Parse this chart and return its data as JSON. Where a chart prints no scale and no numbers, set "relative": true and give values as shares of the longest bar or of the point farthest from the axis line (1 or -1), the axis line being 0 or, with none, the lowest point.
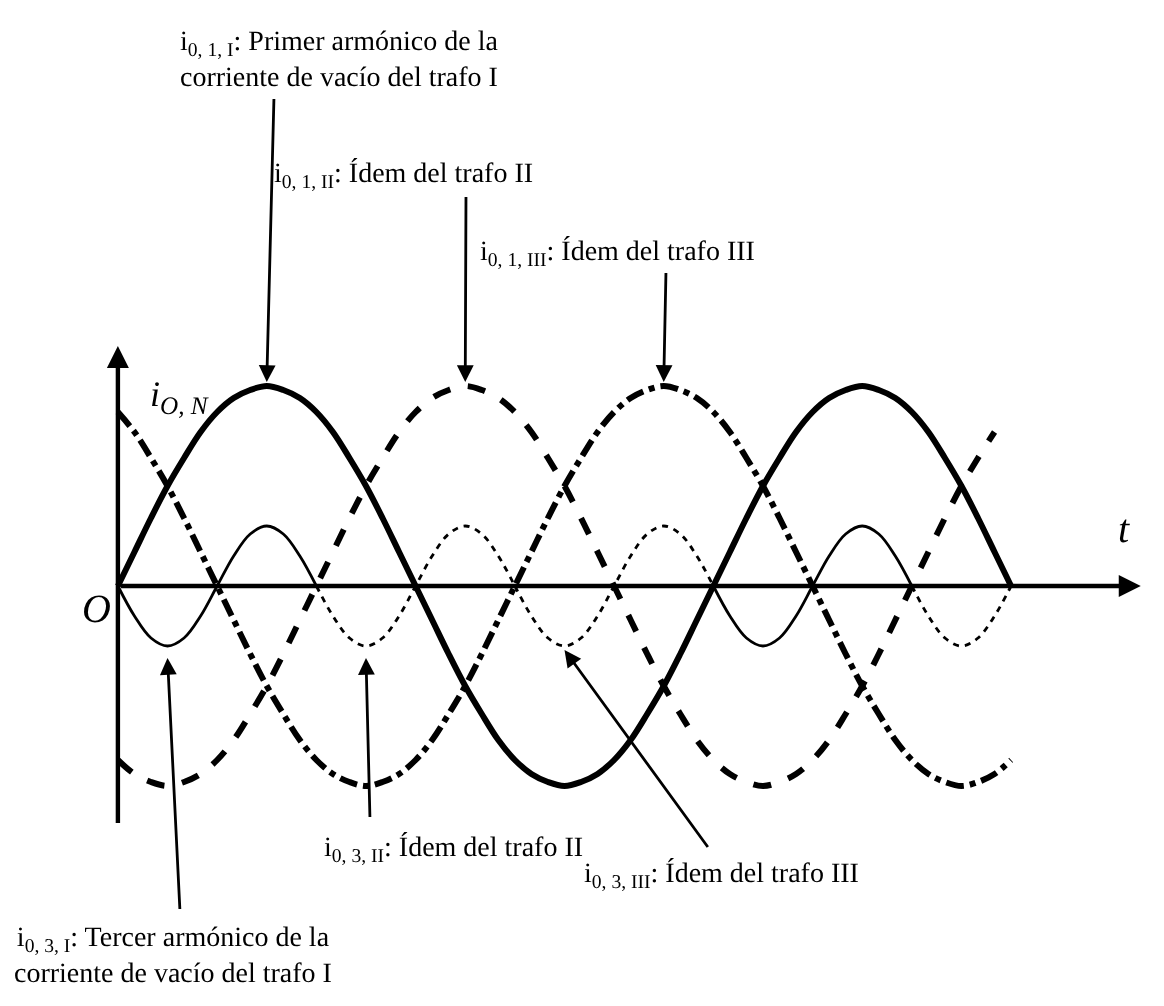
{
  "chart_data": {
    "type": "line",
    "relative": true,
    "legend": false,
    "marker": "none",
    "xlabel": "t",
    "ylabel": "i$_{O, N}$",
    "annotations": [
      "O"
    ],
    "categories": [
      null,
      null,
      null,
      null,
      null,
      null,
      null,
      null,
      null,
      null,
      null,
      null,
      null,
      null,
      null,
      null,
      null,
      null,
      null,
      null,
      null,
      null,
      null,
      null,
      null,
      null,
      null,
      null,
      null,
      null,
      null,
      null,
      null,
      null,
      null,
      null,
      null,
      null,
      null,
      null,
      null,
      null,
      null,
      null,
      null,
      null,
      null,
      null,
      null,
      null,
      null,
      null,
      null,
      null,
      null
    ],
    "series": [
      {
        "name": "i$_{0, 1, I}$: Primer armónico de la corriente de vacío del trafo I",
        "color": "#000000",
        "line_style": "solid",
        "values": [
          0,
          0.17,
          0.34,
          0.5,
          0.64,
          0.77,
          0.87,
          0.94,
          0.98,
          1,
          0.98,
          0.94,
          0.87,
          0.77,
          0.64,
          0.5,
          0.34,
          0.17,
          0,
          -0.17,
          -0.34,
          -0.5,
          -0.64,
          -0.77,
          -0.87,
          -0.94,
          -0.98,
          -1,
          -0.98,
          -0.94,
          -0.87,
          -0.77,
          -0.64,
          -0.5,
          -0.34,
          -0.17,
          0,
          0.17,
          0.34,
          0.5,
          0.64,
          0.77,
          0.87,
          0.94,
          0.98,
          1,
          0.98,
          0.94,
          0.87,
          0.77,
          0.64,
          0.5,
          0.34,
          0.17,
          0
        ]
      },
      {
        "name": "i$_{0, 1, II}$: Ídem del trafo II",
        "color": "#000000",
        "line_style": "dashed",
        "values": [
          -0.87,
          -0.94,
          -0.98,
          -1,
          -0.98,
          -0.94,
          -0.87,
          -0.77,
          -0.64,
          -0.5,
          -0.34,
          -0.17,
          0,
          0.17,
          0.34,
          0.5,
          0.64,
          0.77,
          0.87,
          0.94,
          0.98,
          1,
          0.98,
          0.94,
          0.87,
          0.77,
          0.64,
          0.5,
          0.34,
          0.17,
          0,
          -0.17,
          -0.34,
          -0.5,
          -0.64,
          -0.77,
          -0.87,
          -0.94,
          -0.98,
          -1,
          -0.98,
          -0.94,
          -0.87,
          -0.77,
          -0.64,
          -0.5,
          -0.34,
          -0.17,
          0,
          0.17,
          0.34,
          0.5,
          0.64,
          0.77,
          null
        ]
      },
      {
        "name": "i$_{0, 1, III}$: Ídem del trafo III",
        "color": "#000000",
        "line_style": "dashdot",
        "values": [
          0.87,
          0.77,
          0.64,
          0.5,
          0.34,
          0.17,
          0,
          -0.17,
          -0.34,
          -0.5,
          -0.64,
          -0.77,
          -0.87,
          -0.94,
          -0.98,
          -1,
          -0.98,
          -0.94,
          -0.87,
          -0.77,
          -0.64,
          -0.5,
          -0.34,
          -0.17,
          0,
          0.17,
          0.34,
          0.5,
          0.64,
          0.77,
          0.87,
          0.94,
          0.98,
          1,
          0.98,
          0.94,
          0.87,
          0.77,
          0.64,
          0.5,
          0.34,
          0.17,
          0,
          -0.17,
          -0.34,
          -0.5,
          -0.64,
          -0.77,
          -0.87,
          -0.94,
          -0.98,
          -1,
          -0.98,
          -0.94,
          -0.87
        ]
      },
      {
        "name": "i$_{0, 3, I}$: Tercer armónico de la corriente de vacío del trafo I",
        "color": "#000000",
        "line_style": "solid",
        "values": [
          0,
          -0.15,
          -0.26,
          -0.3,
          -0.26,
          -0.15,
          0,
          0.15,
          0.26,
          0.3,
          0.26,
          0.15,
          0,
          null,
          null,
          null,
          null,
          null,
          null,
          null,
          null,
          null,
          null,
          null,
          null,
          null,
          null,
          null,
          null,
          null,
          null,
          null,
          null,
          null,
          null,
          null,
          0,
          -0.15,
          -0.26,
          -0.3,
          -0.26,
          -0.15,
          0,
          0.15,
          0.26,
          0.3,
          0.26,
          0.15,
          0,
          null,
          null,
          null,
          null,
          null,
          null
        ]
      },
      {
        "name": "i$_{0, 3, II}$: Ídem del trafo II",
        "color": "#000000",
        "line_style": "dotted",
        "values": [
          null,
          null,
          null,
          null,
          null,
          null,
          null,
          null,
          null,
          null,
          null,
          null,
          0,
          -0.15,
          -0.26,
          -0.3,
          -0.26,
          -0.15,
          0,
          0.15,
          0.26,
          0.3,
          0.26,
          0.15,
          0,
          null,
          null,
          null,
          null,
          null,
          null,
          null,
          null,
          null,
          null,
          null,
          null,
          null,
          null,
          null,
          null,
          null,
          null,
          null,
          null,
          null,
          null,
          null,
          0,
          -0.15,
          -0.26,
          -0.3,
          -0.26,
          -0.15,
          0
        ]
      },
      {
        "name": "i$_{0, 3, III}$: Ídem del trafo III",
        "color": "#000000",
        "line_style": "dotted",
        "values": [
          null,
          null,
          null,
          null,
          null,
          null,
          null,
          null,
          null,
          null,
          null,
          null,
          null,
          null,
          null,
          null,
          null,
          null,
          null,
          null,
          null,
          null,
          null,
          null,
          0,
          -0.15,
          -0.26,
          -0.3,
          -0.26,
          -0.15,
          0,
          0.15,
          0.26,
          0.3,
          0.26,
          0.15,
          0,
          null,
          null,
          null,
          null,
          null,
          null,
          null,
          null,
          null,
          null,
          null,
          null,
          null,
          null,
          null,
          null,
          null,
          null
        ]
      }
    ]
  }
}
